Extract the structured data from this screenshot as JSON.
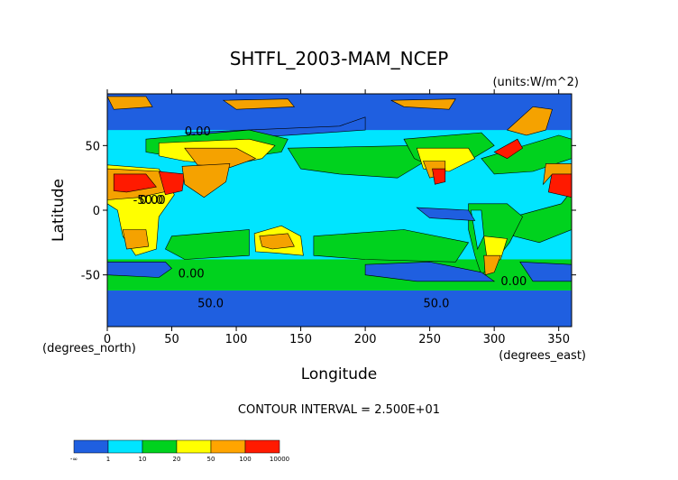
{
  "chart_data": {
    "type": "heatmap",
    "title": "SHTFL_2003-MAM_NCEP",
    "units": "(units:W/m^2)",
    "xlabel": "Longitude",
    "ylabel": "Latitude",
    "x_unit_label": "(degrees_east)",
    "y_unit_label": "(degrees_north)",
    "xlim": [
      0,
      360
    ],
    "ylim": [
      -90,
      90
    ],
    "x_ticks": [
      0,
      50,
      100,
      150,
      200,
      250,
      300,
      350
    ],
    "y_ticks": [
      -50,
      0,
      50
    ],
    "contour_interval_text": "CONTOUR INTERVAL = 2.500E+01",
    "contour_labels": [
      "0.00",
      "50.0",
      "-50.0"
    ],
    "colorbar": {
      "levels": [
        "-∞",
        "1",
        "10",
        "20",
        "50",
        "100",
        "10000"
      ],
      "colors": [
        "#1f5fe0",
        "#00e5ff",
        "#00d21e",
        "#ffff00",
        "#ffa500",
        "#ff1a00"
      ]
    },
    "colors": {
      "neg": "#1f5fe0",
      "c1": "#00e5ff",
      "c2": "#00d21e",
      "c3": "#ffff00",
      "c4": "#f5a200",
      "c5": "#ff1a00"
    }
  }
}
